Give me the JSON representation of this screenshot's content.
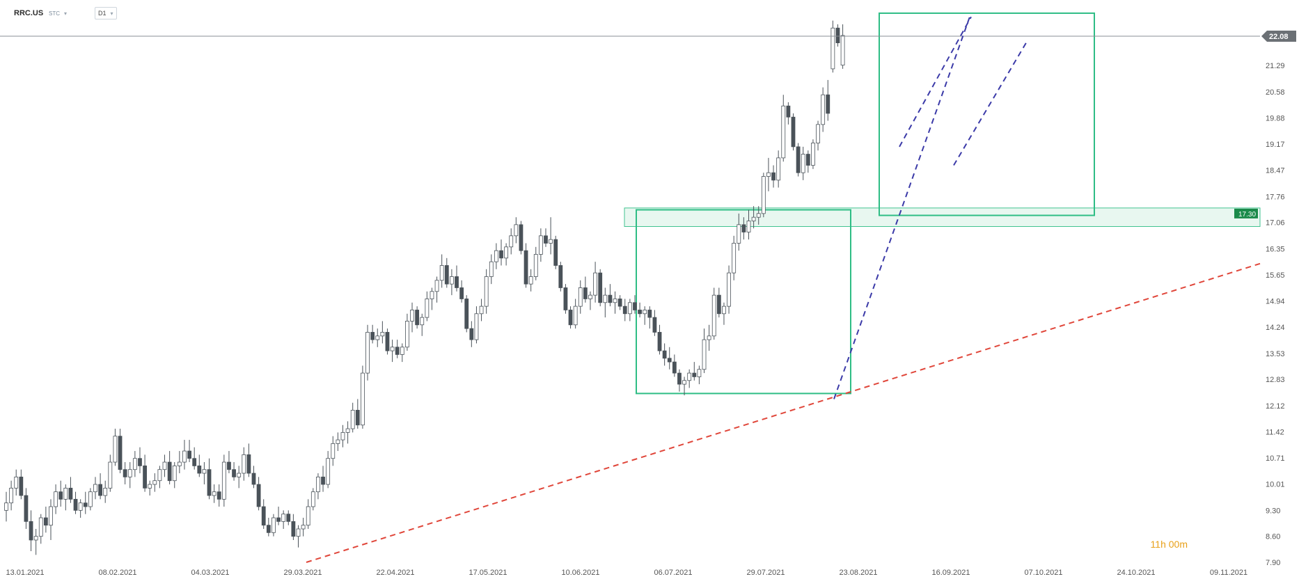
{
  "header": {
    "symbol": "RRC.US",
    "symbol_type": "STC",
    "timeframe": "D1",
    "caret": "▾"
  },
  "countdown": "11h 00m",
  "colors": {
    "bull_body": "#ffffff",
    "bear_body": "#4a5259",
    "wick": "#4a5259",
    "box": "#2ebd85",
    "zone_fill": "#e6f7ef",
    "zone_label_bg": "#1a8a4a",
    "price_label_bg": "#6b7075",
    "trend_red": "#e0463a",
    "channel_blue": "#3b3aa8",
    "grid_text": "#555555"
  },
  "chart_data": {
    "type": "candlestick",
    "y_ticks": [
      "22.08",
      "21.29",
      "20.58",
      "19.88",
      "19.17",
      "18.47",
      "17.76",
      "17.06",
      "16.35",
      "15.65",
      "14.94",
      "14.24",
      "13.53",
      "12.83",
      "12.12",
      "11.42",
      "10.71",
      "10.01",
      "9.30",
      "8.60",
      "7.90"
    ],
    "x_ticks": [
      "13.01.2021",
      "08.02.2021",
      "04.03.2021",
      "29.03.2021",
      "22.04.2021",
      "17.05.2021",
      "10.06.2021",
      "06.07.2021",
      "29.07.2021",
      "23.08.2021",
      "16.09.2021",
      "07.10.2021",
      "24.10.2021",
      "09.11.2021"
    ],
    "current_price": "22.08",
    "zone_price": "17.30",
    "ylim": [
      7.9,
      22.6
    ],
    "candles": [
      [
        9.3,
        9.8,
        9.0,
        9.5
      ],
      [
        9.5,
        10.1,
        9.3,
        9.9
      ],
      [
        9.9,
        10.4,
        9.7,
        10.2
      ],
      [
        10.2,
        10.4,
        9.6,
        9.7
      ],
      [
        9.7,
        9.9,
        8.8,
        9.0
      ],
      [
        9.0,
        9.3,
        8.2,
        8.5
      ],
      [
        8.5,
        8.8,
        8.1,
        8.6
      ],
      [
        8.6,
        9.2,
        8.4,
        9.1
      ],
      [
        9.1,
        9.4,
        8.7,
        8.9
      ],
      [
        8.9,
        9.6,
        8.5,
        9.4
      ],
      [
        9.4,
        10.0,
        9.2,
        9.8
      ],
      [
        9.8,
        10.1,
        9.4,
        9.6
      ],
      [
        9.6,
        10.0,
        9.3,
        9.9
      ],
      [
        9.9,
        10.2,
        9.5,
        9.6
      ],
      [
        9.6,
        9.8,
        9.2,
        9.3
      ],
      [
        9.3,
        9.6,
        9.1,
        9.5
      ],
      [
        9.5,
        9.8,
        9.2,
        9.4
      ],
      [
        9.4,
        9.9,
        9.3,
        9.8
      ],
      [
        9.8,
        10.2,
        9.6,
        10.0
      ],
      [
        10.0,
        10.3,
        9.6,
        9.7
      ],
      [
        9.7,
        10.1,
        9.5,
        9.9
      ],
      [
        9.9,
        10.8,
        9.8,
        10.6
      ],
      [
        10.6,
        11.5,
        10.5,
        11.3
      ],
      [
        11.3,
        11.5,
        10.3,
        10.4
      ],
      [
        10.4,
        10.6,
        10.0,
        10.2
      ],
      [
        10.2,
        10.6,
        9.9,
        10.4
      ],
      [
        10.4,
        10.9,
        10.2,
        10.7
      ],
      [
        10.7,
        11.0,
        10.3,
        10.5
      ],
      [
        10.5,
        10.8,
        9.8,
        9.9
      ],
      [
        9.9,
        10.1,
        9.7,
        10.0
      ],
      [
        10.0,
        10.3,
        9.8,
        10.1
      ],
      [
        10.1,
        10.5,
        9.9,
        10.4
      ],
      [
        10.4,
        10.8,
        10.2,
        10.6
      ],
      [
        10.6,
        10.9,
        10.0,
        10.1
      ],
      [
        10.1,
        10.6,
        9.9,
        10.5
      ],
      [
        10.5,
        10.9,
        10.3,
        10.6
      ],
      [
        10.6,
        11.2,
        10.4,
        10.9
      ],
      [
        10.9,
        11.2,
        10.6,
        10.7
      ],
      [
        10.7,
        11.0,
        10.4,
        10.5
      ],
      [
        10.5,
        10.8,
        10.2,
        10.3
      ],
      [
        10.3,
        10.6,
        10.0,
        10.4
      ],
      [
        10.4,
        10.7,
        9.6,
        9.7
      ],
      [
        9.7,
        10.0,
        9.5,
        9.8
      ],
      [
        9.8,
        10.0,
        9.4,
        9.6
      ],
      [
        9.6,
        10.8,
        9.4,
        10.6
      ],
      [
        10.6,
        10.9,
        10.3,
        10.4
      ],
      [
        10.4,
        10.6,
        10.1,
        10.2
      ],
      [
        10.2,
        10.5,
        9.9,
        10.3
      ],
      [
        10.3,
        11.0,
        10.1,
        10.8
      ],
      [
        10.8,
        11.1,
        10.2,
        10.3
      ],
      [
        10.3,
        10.5,
        9.9,
        10.0
      ],
      [
        10.0,
        10.2,
        9.3,
        9.4
      ],
      [
        9.4,
        9.6,
        8.8,
        8.9
      ],
      [
        8.9,
        9.1,
        8.6,
        8.7
      ],
      [
        8.7,
        9.2,
        8.6,
        9.1
      ],
      [
        9.1,
        9.4,
        8.9,
        9.0
      ],
      [
        9.0,
        9.3,
        8.8,
        9.2
      ],
      [
        9.2,
        9.3,
        8.9,
        9.0
      ],
      [
        9.0,
        9.2,
        8.5,
        8.6
      ],
      [
        8.6,
        8.9,
        8.3,
        8.8
      ],
      [
        8.8,
        9.1,
        8.6,
        8.9
      ],
      [
        8.9,
        9.6,
        8.8,
        9.4
      ],
      [
        9.4,
        9.9,
        9.3,
        9.8
      ],
      [
        9.8,
        10.3,
        9.6,
        10.2
      ],
      [
        10.2,
        10.5,
        9.8,
        10.0
      ],
      [
        10.0,
        10.9,
        9.9,
        10.7
      ],
      [
        10.7,
        11.3,
        10.5,
        11.1
      ],
      [
        11.1,
        11.4,
        10.9,
        11.2
      ],
      [
        11.2,
        11.6,
        11.0,
        11.4
      ],
      [
        11.4,
        11.7,
        11.1,
        11.5
      ],
      [
        11.5,
        12.2,
        11.4,
        12.0
      ],
      [
        12.0,
        12.3,
        11.5,
        11.6
      ],
      [
        11.6,
        13.2,
        11.5,
        13.0
      ],
      [
        13.0,
        14.3,
        12.8,
        14.1
      ],
      [
        14.1,
        14.3,
        13.8,
        13.9
      ],
      [
        13.9,
        14.2,
        13.7,
        14.0
      ],
      [
        14.0,
        14.4,
        13.8,
        14.1
      ],
      [
        14.1,
        14.2,
        13.5,
        13.6
      ],
      [
        13.6,
        13.9,
        13.3,
        13.7
      ],
      [
        13.7,
        13.9,
        13.4,
        13.5
      ],
      [
        13.5,
        13.8,
        13.3,
        13.7
      ],
      [
        13.7,
        14.6,
        13.6,
        14.4
      ],
      [
        14.4,
        14.9,
        14.1,
        14.7
      ],
      [
        14.7,
        14.8,
        14.2,
        14.3
      ],
      [
        14.3,
        14.6,
        14.0,
        14.5
      ],
      [
        14.5,
        15.2,
        14.4,
        15.0
      ],
      [
        15.0,
        15.3,
        14.7,
        15.2
      ],
      [
        15.2,
        15.6,
        14.9,
        15.5
      ],
      [
        15.5,
        16.2,
        15.3,
        15.9
      ],
      [
        15.9,
        16.1,
        15.3,
        15.4
      ],
      [
        15.4,
        15.8,
        15.1,
        15.6
      ],
      [
        15.6,
        15.9,
        15.2,
        15.3
      ],
      [
        15.3,
        15.5,
        14.9,
        15.0
      ],
      [
        15.0,
        15.1,
        14.1,
        14.2
      ],
      [
        14.2,
        14.4,
        13.7,
        13.9
      ],
      [
        13.9,
        14.8,
        13.8,
        14.6
      ],
      [
        14.6,
        15.0,
        14.4,
        14.8
      ],
      [
        14.8,
        15.8,
        14.6,
        15.6
      ],
      [
        15.6,
        16.2,
        15.4,
        16.0
      ],
      [
        16.0,
        16.5,
        15.8,
        16.3
      ],
      [
        16.3,
        16.6,
        15.9,
        16.1
      ],
      [
        16.1,
        16.5,
        15.9,
        16.4
      ],
      [
        16.4,
        16.9,
        16.2,
        16.7
      ],
      [
        16.7,
        17.2,
        16.5,
        17.0
      ],
      [
        17.0,
        17.1,
        16.2,
        16.3
      ],
      [
        16.3,
        16.5,
        15.3,
        15.4
      ],
      [
        15.4,
        15.8,
        15.2,
        15.6
      ],
      [
        15.6,
        16.4,
        15.5,
        16.2
      ],
      [
        16.2,
        16.9,
        16.0,
        16.7
      ],
      [
        16.7,
        16.9,
        16.4,
        16.5
      ],
      [
        16.5,
        17.2,
        16.2,
        16.6
      ],
      [
        16.6,
        16.7,
        15.8,
        15.9
      ],
      [
        15.9,
        16.0,
        15.2,
        15.3
      ],
      [
        15.3,
        15.4,
        14.6,
        14.7
      ],
      [
        14.7,
        14.8,
        14.2,
        14.3
      ],
      [
        14.3,
        15.0,
        14.2,
        14.8
      ],
      [
        14.8,
        15.5,
        14.6,
        15.3
      ],
      [
        15.3,
        15.6,
        14.9,
        15.0
      ],
      [
        15.0,
        15.2,
        14.7,
        15.1
      ],
      [
        15.1,
        16.0,
        14.9,
        15.7
      ],
      [
        15.7,
        15.8,
        14.8,
        14.9
      ],
      [
        14.9,
        15.3,
        14.5,
        15.1
      ],
      [
        15.1,
        15.4,
        14.8,
        14.9
      ],
      [
        14.9,
        15.2,
        14.6,
        15.0
      ],
      [
        15.0,
        15.1,
        14.7,
        14.8
      ],
      [
        14.8,
        15.0,
        14.4,
        14.6
      ],
      [
        14.6,
        15.0,
        14.4,
        14.9
      ],
      [
        14.9,
        15.1,
        14.6,
        14.7
      ],
      [
        14.7,
        14.9,
        14.5,
        14.6
      ],
      [
        14.6,
        14.8,
        14.3,
        14.7
      ],
      [
        14.7,
        14.8,
        14.2,
        14.5
      ],
      [
        14.5,
        14.7,
        14.0,
        14.1
      ],
      [
        14.1,
        14.3,
        13.5,
        13.6
      ],
      [
        13.6,
        13.8,
        13.2,
        13.4
      ],
      [
        13.4,
        13.7,
        13.1,
        13.3
      ],
      [
        13.3,
        13.5,
        12.9,
        13.0
      ],
      [
        13.0,
        13.1,
        12.5,
        12.7
      ],
      [
        12.7,
        12.9,
        12.4,
        12.8
      ],
      [
        12.8,
        13.1,
        12.6,
        13.0
      ],
      [
        13.0,
        13.3,
        12.8,
        12.9
      ],
      [
        12.9,
        13.2,
        12.7,
        13.1
      ],
      [
        13.1,
        14.2,
        13.0,
        13.9
      ],
      [
        13.9,
        14.3,
        13.6,
        14.0
      ],
      [
        14.0,
        15.3,
        13.9,
        15.1
      ],
      [
        15.1,
        15.3,
        14.5,
        14.6
      ],
      [
        14.6,
        14.9,
        14.3,
        14.8
      ],
      [
        14.8,
        15.9,
        14.6,
        15.7
      ],
      [
        15.7,
        16.7,
        15.5,
        16.5
      ],
      [
        16.5,
        17.3,
        16.3,
        17.0
      ],
      [
        17.0,
        17.2,
        16.6,
        16.8
      ],
      [
        16.8,
        17.4,
        16.6,
        17.1
      ],
      [
        17.1,
        17.5,
        16.9,
        17.2
      ],
      [
        17.2,
        17.5,
        17.0,
        17.3
      ],
      [
        17.3,
        18.4,
        17.2,
        18.3
      ],
      [
        18.3,
        18.8,
        17.9,
        18.4
      ],
      [
        18.4,
        18.6,
        18.0,
        18.2
      ],
      [
        18.2,
        19.0,
        18.0,
        18.8
      ],
      [
        18.8,
        20.5,
        18.7,
        20.2
      ],
      [
        20.2,
        20.3,
        19.7,
        19.9
      ],
      [
        19.9,
        20.0,
        19.0,
        19.1
      ],
      [
        19.1,
        19.2,
        18.3,
        18.4
      ],
      [
        18.4,
        19.1,
        18.2,
        18.9
      ],
      [
        18.9,
        19.0,
        18.4,
        18.6
      ],
      [
        18.6,
        19.3,
        18.5,
        19.2
      ],
      [
        19.2,
        19.8,
        19.0,
        19.7
      ],
      [
        19.7,
        20.7,
        19.5,
        20.5
      ],
      [
        20.5,
        20.9,
        19.8,
        20.0
      ],
      [
        21.2,
        22.5,
        21.1,
        22.3
      ],
      [
        22.3,
        22.4,
        21.8,
        21.9
      ],
      [
        21.3,
        22.4,
        21.2,
        22.1
      ]
    ]
  }
}
